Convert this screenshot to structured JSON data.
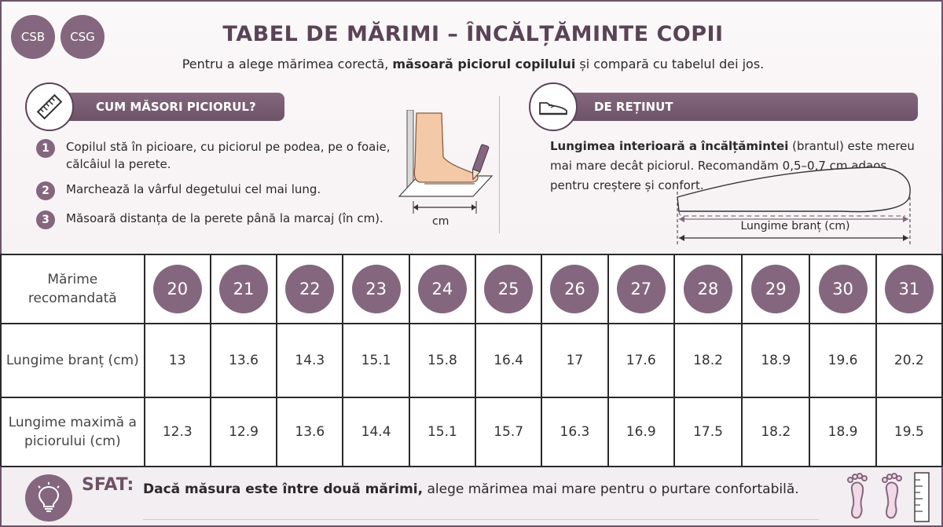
{
  "badges": [
    "CSB",
    "CSG"
  ],
  "title": "TABEL DE MĂRIMI – ÎNCĂLȚĂMINTE COPII",
  "subtitle": {
    "pre": "Pentru a alege mărimea corectă, ",
    "bold": "măsoară piciorul copilului",
    "post": " și compară cu tabelul dei jos."
  },
  "measure": {
    "heading": "CUM MĂSORI PICIORUL?",
    "icon": "ruler-icon",
    "steps": [
      {
        "num": "1",
        "text": "Copilul stă în picioare, cu piciorul pe podea, pe o foaie, călcâiul la perete."
      },
      {
        "num": "2",
        "text": "Marchează la vârful degetului cel mai lung."
      },
      {
        "num": "3",
        "text": "Măsoară distanța de la perete până la marcaj (în cm)."
      }
    ],
    "illustration_unit": "cm"
  },
  "remember": {
    "heading": "DE REȚINUT",
    "icon": "shoe-icon",
    "bold": "Lungimea interioară a încălțămintei",
    "text": " (brantul) este mereu mai mare decât piciorul. Recomandăm 0,5–0,7 cm adaos pentru creștere și confort.",
    "insole_label": "Lungime branț (cm)"
  },
  "table": {
    "row_labels": {
      "size": "Mărime recomandată",
      "insole": "Lungime branț (cm)",
      "foot": "Lungime maximă a piciorului (cm)"
    },
    "sizes": [
      "20",
      "21",
      "22",
      "23",
      "24",
      "25",
      "26",
      "27",
      "28",
      "29",
      "30",
      "31"
    ],
    "insole": [
      "13",
      "13.6",
      "14.3",
      "15.1",
      "15.8",
      "16.4",
      "17",
      "17.6",
      "18.2",
      "18.9",
      "19.6",
      "20.2"
    ],
    "foot": [
      "12.3",
      "12.9",
      "13.6",
      "14.4",
      "15.1",
      "15.7",
      "16.3",
      "16.9",
      "17.5",
      "18.2",
      "18.9",
      "19.5"
    ]
  },
  "tip": {
    "label": "SFAT:",
    "bold": "Dacă măsura este între două mărimi,",
    "text": " alege mărimea mai mare pentru o purtare confortabilă.",
    "icon": "lightbulb-icon",
    "decor_icons": [
      "footprints-icon",
      "ruler-icon"
    ]
  },
  "colors": {
    "accent": "#84677e",
    "accent_dark": "#6d5368",
    "title": "#5a4357"
  }
}
